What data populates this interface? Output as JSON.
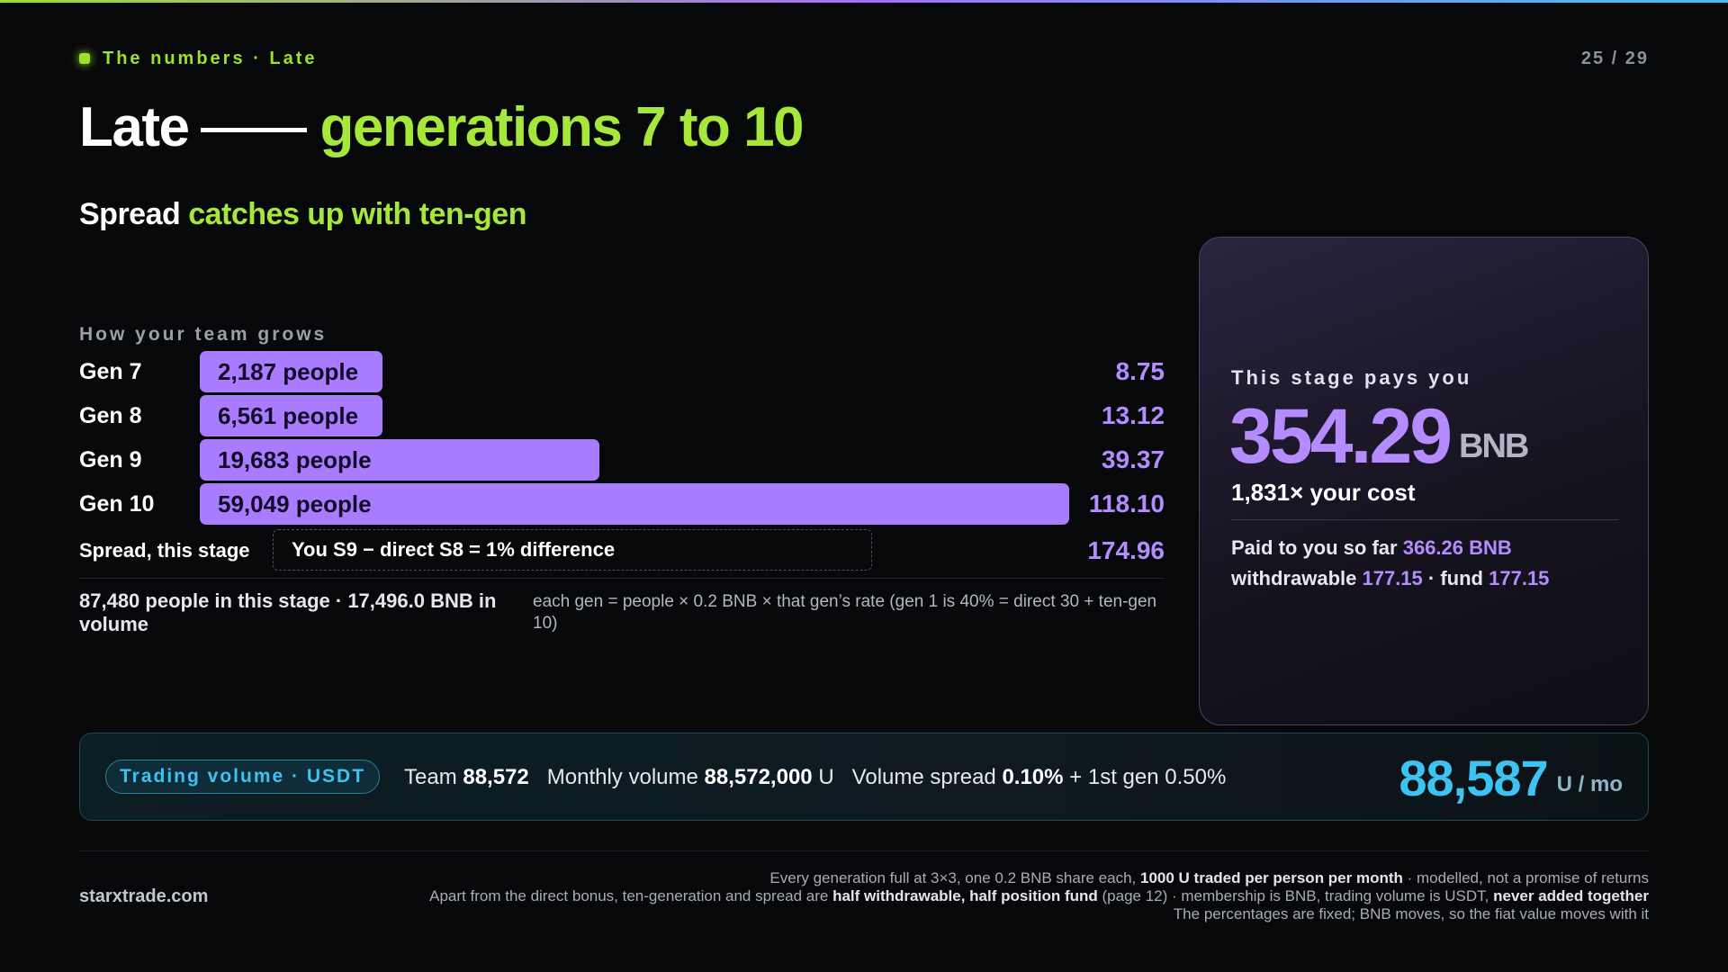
{
  "header": {
    "kicker": "The numbers · Late",
    "page": "25 / 29"
  },
  "title": {
    "main": "Late",
    "highlight": "generations 7 to 10"
  },
  "subtitle": {
    "main": "Spread",
    "highlight": "catches up with ten-gen"
  },
  "growth": {
    "label": "How your team grows",
    "rows": [
      {
        "gen": "Gen 7",
        "people": "2,187 people",
        "value": "8.75",
        "bar_fraction": 0.21
      },
      {
        "gen": "Gen 8",
        "people": "6,561 people",
        "value": "13.12",
        "bar_fraction": 0.21
      },
      {
        "gen": "Gen 9",
        "people": "19,683 people",
        "value": "39.37",
        "bar_fraction": 0.46
      },
      {
        "gen": "Gen 10",
        "people": "59,049 people",
        "value": "118.10",
        "bar_fraction": 1.0
      }
    ],
    "spread_label": "Spread, this stage",
    "spread_formula": "You S9 − direct S8 = 1% difference",
    "spread_value": "174.96",
    "summary": "87,480 people in this stage · 17,496.0 BNB in volume",
    "formula_note": "each gen = people × 0.2 BNB × that gen’s rate (gen 1 is 40% = direct 30 + ten-gen 10)"
  },
  "pay_card": {
    "label": "This stage pays you",
    "amount": "354.29",
    "unit": "BNB",
    "multiple": "1,831× your cost",
    "paid_prefix": "Paid to you so far",
    "paid_value": "366.26 BNB",
    "withdrawable_prefix": "withdrawable",
    "withdrawable_value": "177.15",
    "fund_prefix": "· fund",
    "fund_value": "177.15"
  },
  "volume": {
    "pill": "Trading volume · USDT",
    "team_label": "Team",
    "team_value": "88,572",
    "monthly_label": "Monthly volume",
    "monthly_value": "88,572,000",
    "monthly_unit": "U",
    "spread_label": "Volume spread",
    "spread_value": "0.10%",
    "first_gen": "+ 1st gen 0.50%",
    "result": "88,587",
    "result_unit": "U / mo"
  },
  "footer": {
    "site": "starxtrade.com",
    "line1_pre": "Every generation full at 3×3, one 0.2 BNB share each,",
    "line1_bold": "1000 U traded per person per month",
    "line1_post": "· modelled, not a promise of returns",
    "line2_pre": "Apart from the direct bonus, ten-generation and spread are",
    "line2_bold": "half withdrawable, half position fund",
    "line2_mid": "(page 12) · membership is BNB, trading volume is USDT,",
    "line2_bold2": "never added together",
    "line3": "The percentages are fixed; BNB moves, so the fiat value moves with it"
  },
  "colors": {
    "accent_green": "#a6e83a",
    "accent_purple": "#b48cff",
    "bar_purple": "#a97cff",
    "accent_cyan": "#3dc3f2"
  }
}
